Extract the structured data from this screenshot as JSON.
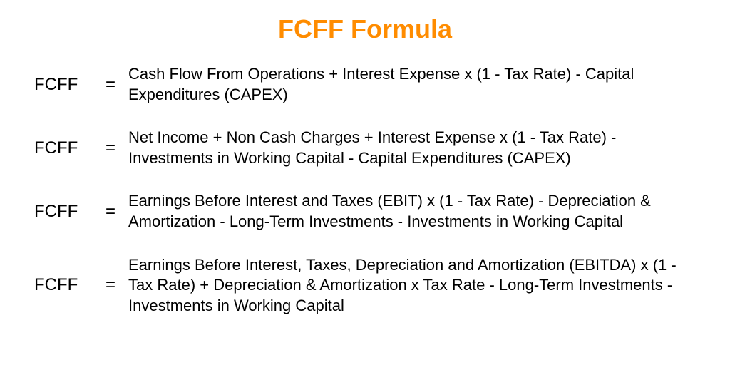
{
  "title": {
    "text": "FCFF Formula",
    "color": "#ff8c00",
    "fontsize": 36
  },
  "formulas": [
    {
      "label": "FCFF",
      "equals": "=",
      "text": "Cash Flow From Operations  + Interest Expense x (1 - Tax Rate) - Capital Expenditures (CAPEX)"
    },
    {
      "label": "FCFF",
      "equals": "=",
      "text": "Net Income + Non Cash Charges + Interest Expense x (1 - Tax Rate) - Investments in Working Capital - Capital Expenditures (CAPEX)"
    },
    {
      "label": "FCFF",
      "equals": "=",
      "text": "Earnings Before Interest and Taxes (EBIT) x (1 - Tax Rate) - Depreciation & Amortization - Long-Term Investments - Investments in Working Capital"
    },
    {
      "label": "FCFF",
      "equals": "=",
      "text": "Earnings Before Interest, Taxes, Depreciation and Amortization (EBITDA) x (1 - Tax Rate) + Depreciation & Amortization x Tax Rate - Long-Term Investments - Investments in Working Capital"
    }
  ],
  "styling": {
    "background_color": "#ffffff",
    "text_color": "#000000",
    "label_fontsize": 24,
    "text_fontsize": 22,
    "font_family": "Arial"
  }
}
